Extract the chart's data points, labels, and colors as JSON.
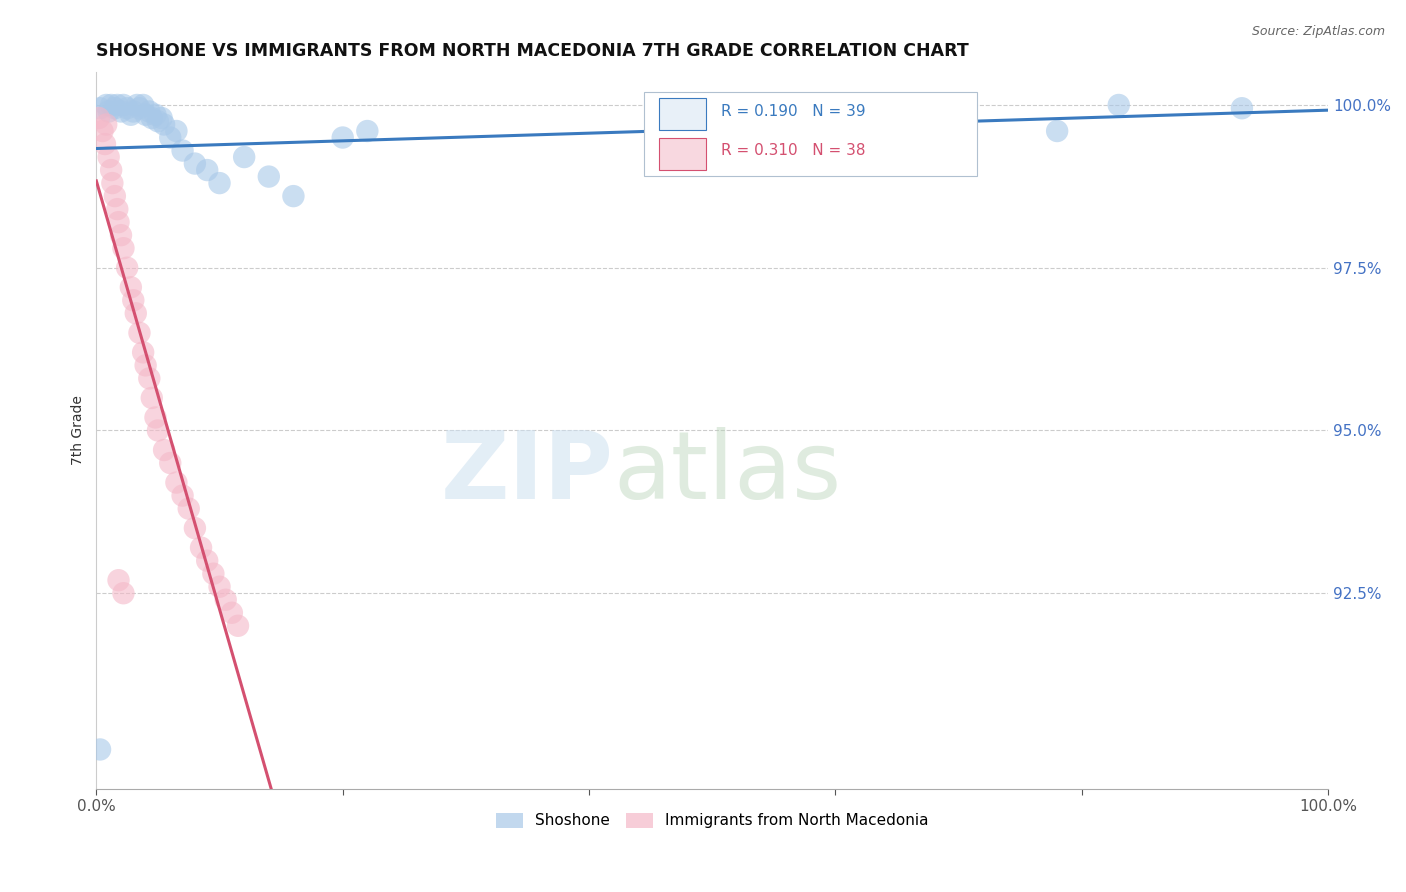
{
  "title": "SHOSHONE VS IMMIGRANTS FROM NORTH MACEDONIA 7TH GRADE CORRELATION CHART",
  "source": "Source: ZipAtlas.com",
  "ylabel": "7th Grade",
  "blue_color": "#a8c8e8",
  "pink_color": "#f4b8c8",
  "blue_line_color": "#3a7abf",
  "pink_line_color": "#d45070",
  "legend_box_color": "#e8f0f8",
  "legend_pink_box": "#f8d8e0",
  "blue_r": "R = 0.190",
  "blue_n": "N = 39",
  "pink_r": "R = 0.310",
  "pink_n": "N = 38",
  "blue_x": [
    0.003,
    0.008,
    0.01,
    0.012,
    0.015,
    0.017,
    0.02,
    0.022,
    0.025,
    0.028,
    0.03,
    0.033,
    0.035,
    0.038,
    0.04,
    0.043,
    0.045,
    0.048,
    0.05,
    0.053,
    0.055,
    0.06,
    0.065,
    0.07,
    0.08,
    0.09,
    0.1,
    0.12,
    0.14,
    0.16,
    0.2,
    0.22,
    0.5,
    0.58,
    0.6,
    0.78,
    0.83,
    0.93,
    0.003
  ],
  "blue_y": [
    99.95,
    100.0,
    99.9,
    100.0,
    99.95,
    100.0,
    99.9,
    100.0,
    99.95,
    99.85,
    99.9,
    100.0,
    99.95,
    100.0,
    99.85,
    99.9,
    99.8,
    99.85,
    99.75,
    99.8,
    99.7,
    99.5,
    99.6,
    99.3,
    99.1,
    99.0,
    98.8,
    99.2,
    98.9,
    98.6,
    99.5,
    99.6,
    99.3,
    99.8,
    99.7,
    99.6,
    100.0,
    99.95,
    90.1
  ],
  "pink_x": [
    0.002,
    0.005,
    0.007,
    0.008,
    0.01,
    0.012,
    0.013,
    0.015,
    0.017,
    0.018,
    0.02,
    0.022,
    0.025,
    0.028,
    0.03,
    0.032,
    0.035,
    0.038,
    0.04,
    0.043,
    0.045,
    0.048,
    0.05,
    0.055,
    0.06,
    0.065,
    0.07,
    0.075,
    0.08,
    0.085,
    0.09,
    0.095,
    0.1,
    0.105,
    0.11,
    0.115,
    0.018,
    0.022
  ],
  "pink_y": [
    99.8,
    99.6,
    99.4,
    99.7,
    99.2,
    99.0,
    98.8,
    98.6,
    98.4,
    98.2,
    98.0,
    97.8,
    97.5,
    97.2,
    97.0,
    96.8,
    96.5,
    96.2,
    96.0,
    95.8,
    95.5,
    95.2,
    95.0,
    94.7,
    94.5,
    94.2,
    94.0,
    93.8,
    93.5,
    93.2,
    93.0,
    92.8,
    92.6,
    92.4,
    92.2,
    92.0,
    92.7,
    92.5
  ],
  "xlim": [
    0.0,
    1.0
  ],
  "ylim": [
    89.5,
    100.5
  ],
  "yticks": [
    92.5,
    95.0,
    97.5,
    100.0
  ],
  "ytick_labels": [
    "92.5%",
    "95.0%",
    "97.5%",
    "100.0%"
  ]
}
